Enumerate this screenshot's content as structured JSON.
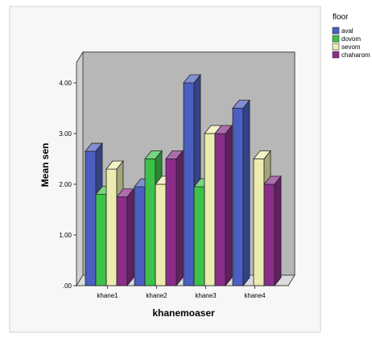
{
  "chart_data": {
    "type": "bar",
    "title": "",
    "xlabel": "khanemoaser",
    "ylabel": "Mean sen",
    "ylim": [
      0,
      4.4
    ],
    "yticks": [
      ".00",
      "1.00",
      "2.00",
      "3.00",
      "4.00"
    ],
    "categories": [
      "khane1",
      "khane2",
      "khane3",
      "khane4"
    ],
    "legend_title": "floor",
    "legend_position": "top-right",
    "grid": false,
    "three_d": true,
    "series": [
      {
        "name": "aval",
        "color": "#4a5fc1",
        "values": [
          2.65,
          1.95,
          4.0,
          3.5
        ]
      },
      {
        "name": "dovom",
        "color": "#3cc24a",
        "values": [
          1.8,
          2.5,
          1.95,
          0
        ]
      },
      {
        "name": "sevom",
        "color": "#ecebb0",
        "values": [
          2.3,
          2.0,
          3.0,
          2.5
        ]
      },
      {
        "name": "chaharom",
        "color": "#8a2e8a",
        "values": [
          1.75,
          2.5,
          3.0,
          2.0
        ]
      }
    ]
  }
}
